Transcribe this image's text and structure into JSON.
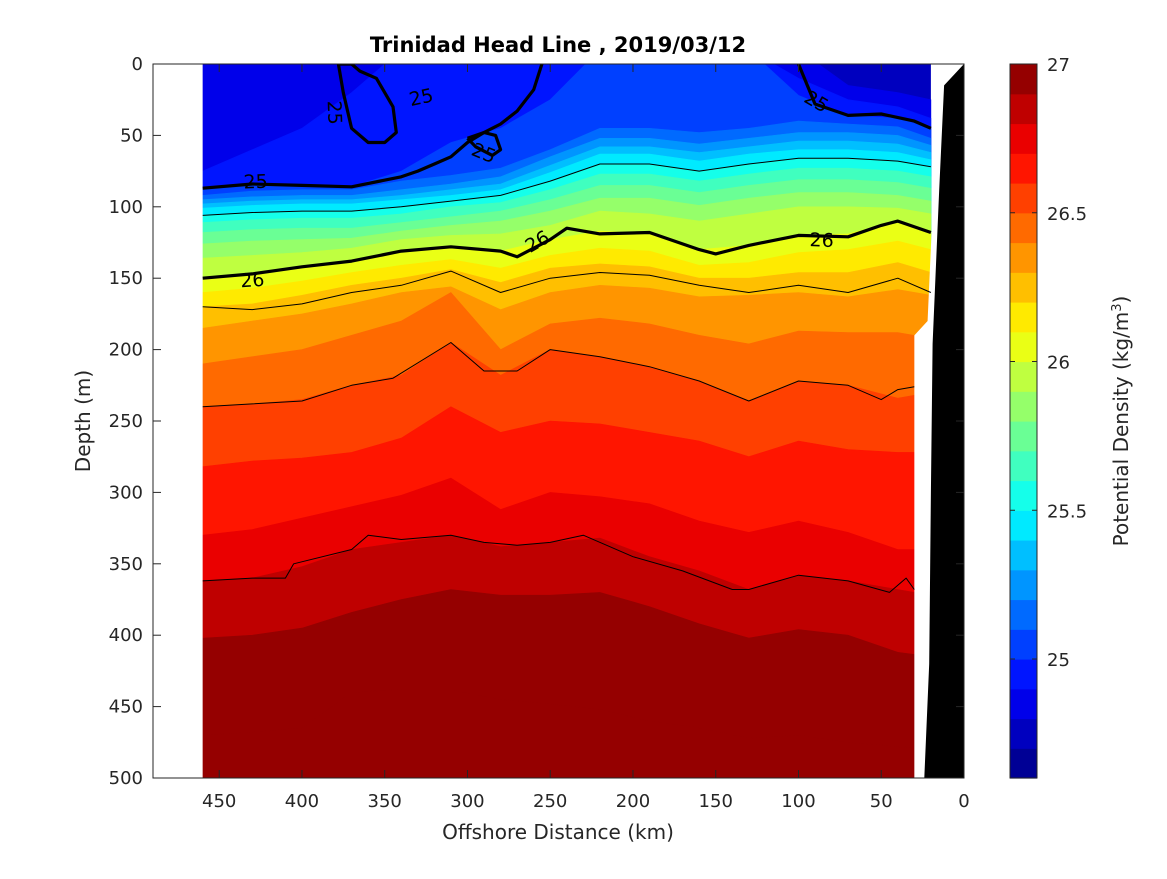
{
  "chart_data": {
    "type": "heatmap",
    "subtype": "filled-contour-section",
    "title": "Trinidad Head Line , 2019/03/12",
    "xlabel": "Offshore Distance (km)",
    "ylabel": "Depth (m)",
    "xlim": [
      490,
      0
    ],
    "ylim": [
      500,
      0
    ],
    "x_reversed": true,
    "y_reversed": true,
    "xticks": [
      450,
      400,
      350,
      300,
      250,
      200,
      150,
      100,
      50,
      0
    ],
    "yticks": [
      0,
      50,
      100,
      150,
      200,
      250,
      300,
      350,
      400,
      450,
      500
    ],
    "colorbar": {
      "label": "Potential Density (kg/m³)",
      "label_text": "Potential Density (kg/m",
      "label_sup": "3",
      "label_close": ")",
      "range": [
        24.6,
        27.0
      ],
      "step": 0.1,
      "ticks": [
        25,
        25.5,
        26,
        26.5,
        27
      ],
      "tick_labels": [
        "25",
        "25.5",
        "26",
        "26.5",
        "27"
      ],
      "colormap": "jet"
    },
    "data_extent_km": [
      460,
      20
    ],
    "density_contour_depths": {
      "x": [
        460,
        430,
        400,
        370,
        340,
        310,
        280,
        250,
        220,
        190,
        160,
        130,
        100,
        70,
        40,
        20
      ],
      "levels": [
        {
          "value": 24.8,
          "depth": [
            -10,
            -10,
            -10,
            -10,
            -10,
            -10,
            -10,
            -10,
            -10,
            -10,
            -10,
            -10,
            -10,
            15,
            20,
            25
          ]
        },
        {
          "value": 24.9,
          "depth": [
            75,
            60,
            45,
            20,
            -10,
            -10,
            -10,
            -10,
            -10,
            -10,
            -10,
            -10,
            10,
            25,
            30,
            38
          ]
        },
        {
          "value": 25.0,
          "depth": [
            87,
            84,
            85,
            86,
            75,
            55,
            45,
            25,
            -10,
            -10,
            -10,
            -10,
            22,
            36,
            38,
            45
          ]
        },
        {
          "value": 25.1,
          "depth": [
            92,
            89,
            88,
            88,
            82,
            78,
            73,
            60,
            45,
            45,
            48,
            45,
            40,
            42,
            44,
            52
          ]
        },
        {
          "value": 25.2,
          "depth": [
            95,
            93,
            92,
            92,
            88,
            84,
            79,
            65,
            52,
            52,
            56,
            52,
            48,
            48,
            50,
            57
          ]
        },
        {
          "value": 25.3,
          "depth": [
            98,
            96,
            95,
            95,
            92,
            88,
            84,
            71,
            58,
            58,
            62,
            58,
            54,
            54,
            56,
            62
          ]
        },
        {
          "value": 25.4,
          "depth": [
            101,
            99,
            98,
            98,
            95,
            92,
            88,
            76,
            63,
            63,
            68,
            63,
            60,
            60,
            62,
            67
          ]
        },
        {
          "value": 25.5,
          "depth": [
            106,
            104,
            103,
            103,
            100,
            96,
            92,
            82,
            70,
            70,
            75,
            70,
            66,
            66,
            68,
            72
          ]
        },
        {
          "value": 25.6,
          "depth": [
            111,
            109,
            108,
            108,
            105,
            100,
            97,
            88,
            77,
            77,
            82,
            77,
            73,
            73,
            75,
            79
          ]
        },
        {
          "value": 25.7,
          "depth": [
            118,
            116,
            115,
            115,
            111,
            107,
            103,
            95,
            85,
            85,
            90,
            85,
            81,
            81,
            83,
            87
          ]
        },
        {
          "value": 25.8,
          "depth": [
            126,
            124,
            123,
            122,
            117,
            113,
            110,
            103,
            94,
            94,
            99,
            94,
            90,
            90,
            92,
            96
          ]
        },
        {
          "value": 25.9,
          "depth": [
            136,
            134,
            132,
            129,
            123,
            120,
            119,
            113,
            103,
            105,
            110,
            105,
            100,
            100,
            101,
            105
          ]
        },
        {
          "value": 26.0,
          "depth": [
            150,
            147,
            142,
            138,
            131,
            128,
            131,
            123,
            117,
            119,
            130,
            127,
            120,
            119,
            110,
            118
          ]
        },
        {
          "value": 26.1,
          "depth": [
            160,
            157,
            152,
            146,
            141,
            137,
            143,
            134,
            129,
            131,
            141,
            139,
            132,
            130,
            124,
            130
          ]
        },
        {
          "value": 26.2,
          "depth": [
            170,
            168,
            162,
            155,
            150,
            144,
            153,
            143,
            140,
            142,
            150,
            150,
            146,
            146,
            139,
            146
          ]
        },
        {
          "value": 26.3,
          "depth": [
            185,
            180,
            175,
            168,
            160,
            156,
            172,
            160,
            155,
            157,
            163,
            162,
            160,
            163,
            158,
            162
          ]
        },
        {
          "value": 26.4,
          "depth": [
            210,
            205,
            200,
            190,
            180,
            160,
            200,
            182,
            178,
            182,
            190,
            196,
            187,
            188,
            188,
            192
          ]
        },
        {
          "value": 26.5,
          "depth": [
            240,
            238,
            235,
            225,
            218,
            195,
            218,
            200,
            205,
            212,
            222,
            236,
            222,
            225,
            234,
            230
          ]
        },
        {
          "value": 26.6,
          "depth": [
            282,
            278,
            276,
            272,
            262,
            240,
            258,
            250,
            252,
            258,
            264,
            275,
            264,
            270,
            272,
            272
          ]
        },
        {
          "value": 26.7,
          "depth": [
            330,
            326,
            318,
            310,
            302,
            290,
            312,
            300,
            303,
            308,
            320,
            328,
            320,
            328,
            340,
            340
          ]
        },
        {
          "value": 26.8,
          "depth": [
            362,
            360,
            352,
            340,
            335,
            330,
            338,
            335,
            332,
            345,
            355,
            368,
            358,
            362,
            368,
            372
          ]
        },
        {
          "value": 26.9,
          "depth": [
            402,
            400,
            395,
            384,
            375,
            368,
            372,
            372,
            370,
            380,
            392,
            402,
            396,
            400,
            412,
            415
          ]
        },
        {
          "value": 27.0,
          "depth": [
            470,
            468,
            465,
            440,
            438,
            438,
            445,
            448,
            452,
            460,
            465,
            472,
            470,
            475,
            478,
            480
          ]
        }
      ]
    },
    "contour_lines": [
      {
        "label": "25",
        "value": 25.0,
        "bold": true,
        "x": [
          460,
          430,
          400,
          370,
          340,
          330,
          320,
          310,
          300,
          290,
          280,
          270,
          260,
          255
        ],
        "y": [
          87,
          84,
          85,
          86,
          79,
          75,
          70,
          65,
          55,
          48,
          42,
          33,
          18,
          0
        ]
      },
      {
        "label": "25",
        "value": 25.0,
        "bold": true,
        "x": [
          100,
          90,
          70,
          50,
          30,
          20
        ],
        "y": [
          0,
          28,
          36,
          35,
          40,
          45
        ]
      },
      {
        "label": "25",
        "value": 25.0,
        "bold": true,
        "x": [
          378,
          375,
          370,
          360,
          350,
          343,
          345,
          355,
          365,
          370,
          372,
          375,
          378
        ],
        "y": [
          0,
          20,
          45,
          55,
          55,
          48,
          30,
          10,
          5,
          0,
          0,
          0,
          0
        ]
      },
      {
        "label": "25",
        "value": 25.0,
        "bold": true,
        "x": [
          300,
          290,
          283,
          280,
          285,
          295,
          300
        ],
        "y": [
          52,
          48,
          50,
          60,
          64,
          58,
          52
        ]
      },
      {
        "label": "26",
        "value": 26.0,
        "bold": true,
        "x": [
          460,
          430,
          400,
          370,
          340,
          310,
          280,
          270,
          250,
          240,
          220,
          190,
          160,
          150,
          130,
          100,
          70,
          50,
          40,
          20
        ],
        "y": [
          150,
          147,
          142,
          138,
          131,
          128,
          131,
          135,
          123,
          115,
          119,
          118,
          130,
          133,
          127,
          120,
          121,
          113,
          110,
          118
        ]
      },
      {
        "label": "",
        "value": 25.5,
        "bold": false,
        "x": [
          460,
          430,
          400,
          370,
          340,
          310,
          280,
          250,
          220,
          190,
          160,
          130,
          100,
          70,
          40,
          20
        ],
        "y": [
          106,
          104,
          103,
          103,
          100,
          96,
          92,
          82,
          70,
          70,
          75,
          70,
          66,
          66,
          68,
          72
        ]
      },
      {
        "label": "",
        "value": 26.25,
        "bold": false,
        "x": [
          460,
          430,
          400,
          370,
          340,
          310,
          280,
          250,
          220,
          190,
          160,
          130,
          100,
          70,
          40,
          20
        ],
        "y": [
          170,
          172,
          168,
          160,
          155,
          145,
          160,
          150,
          146,
          148,
          155,
          160,
          155,
          160,
          150,
          160
        ]
      },
      {
        "label": "",
        "value": 26.55,
        "bold": false,
        "x": [
          460,
          430,
          400,
          370,
          345,
          310,
          290,
          270,
          250,
          220,
          190,
          160,
          130,
          100,
          70,
          50,
          40,
          30
        ],
        "y": [
          240,
          238,
          236,
          225,
          220,
          195,
          215,
          215,
          200,
          205,
          212,
          222,
          236,
          222,
          225,
          235,
          228,
          226
        ]
      },
      {
        "label": "",
        "value": 26.8,
        "bold": false,
        "x": [
          460,
          430,
          410,
          405,
          370,
          360,
          340,
          310,
          290,
          270,
          250,
          230,
          200,
          170,
          140,
          130,
          100,
          70,
          45,
          35,
          30
        ],
        "y": [
          362,
          360,
          360,
          350,
          340,
          330,
          333,
          330,
          335,
          337,
          335,
          330,
          345,
          355,
          368,
          368,
          358,
          362,
          370,
          360,
          368
        ]
      }
    ],
    "contour_labels": [
      {
        "text": "25",
        "x": 428,
        "y": 82,
        "angle": -2
      },
      {
        "text": "25",
        "x": 380,
        "y": 34,
        "angle": 88
      },
      {
        "text": "25",
        "x": 328,
        "y": 23,
        "angle": -12
      },
      {
        "text": "25",
        "x": 290,
        "y": 62,
        "angle": 22
      },
      {
        "text": "25",
        "x": 89,
        "y": 26,
        "angle": 30
      },
      {
        "text": "26",
        "x": 430,
        "y": 151,
        "angle": -4
      },
      {
        "text": "26",
        "x": 258,
        "y": 124,
        "angle": -30
      },
      {
        "text": "26",
        "x": 86,
        "y": 123,
        "angle": 2
      }
    ],
    "shelf": {
      "comment": "sea floor / land in black, seamask area",
      "outline_x": [
        0,
        12,
        15,
        19,
        20,
        21,
        24,
        0
      ],
      "outline_y": [
        0,
        15,
        88,
        196,
        300,
        420,
        500,
        500
      ]
    }
  }
}
